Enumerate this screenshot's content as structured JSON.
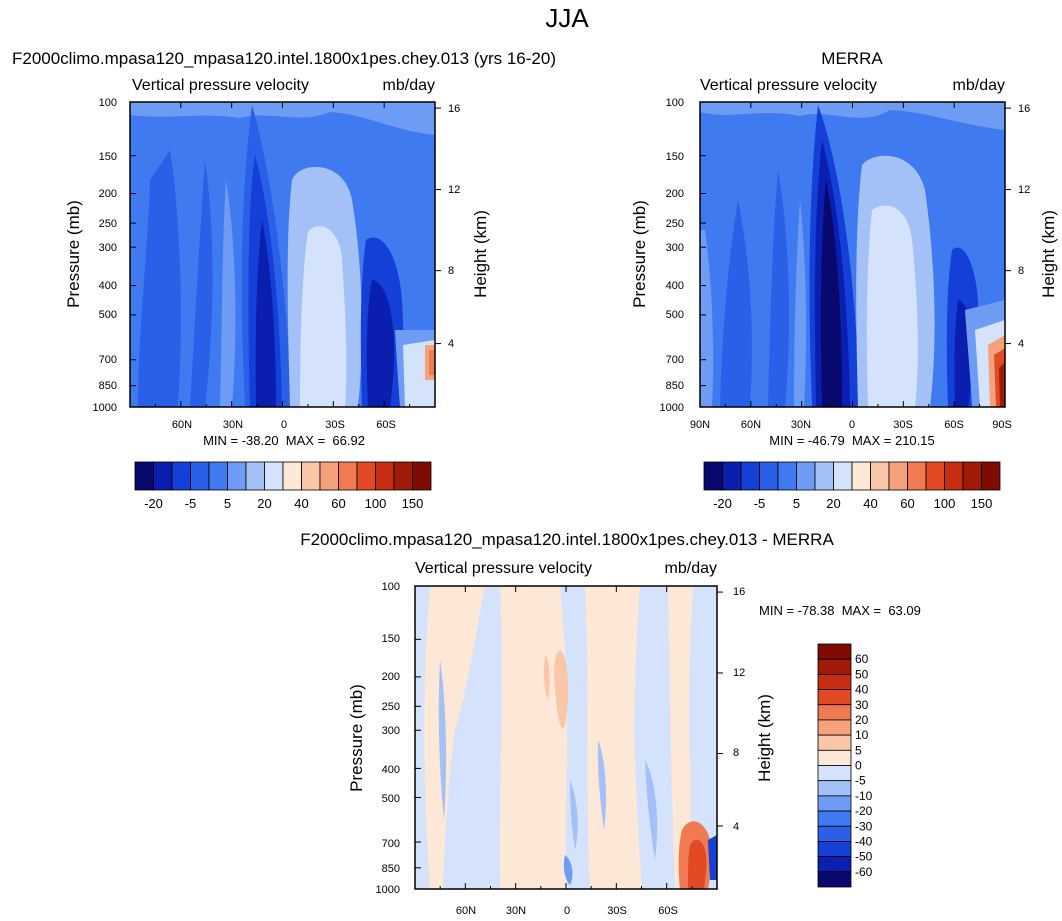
{
  "figure_title": "JJA",
  "chart_data": [
    {
      "type": "heatmap",
      "panel": "model",
      "title": "F2000climo.mpasa120_mpasa120.intel.1800x1pes.chey.013 (yrs 16-20)",
      "left_subtitle": "Vertical pressure velocity",
      "right_subtitle": "mb/day",
      "ylabel": "Pressure (mb)",
      "ylabel_right": "Height (km)",
      "pressure_ticks": [
        "100",
        "150",
        "200",
        "250",
        "300",
        "400",
        "500",
        "700",
        "850",
        "1000"
      ],
      "height_ticks": [
        "16",
        "12",
        "8",
        "4"
      ],
      "lat_ticks": [
        "60N",
        "30N",
        "0",
        "30S",
        "60S"
      ],
      "stats": "MIN = -38.20  MAX =  66.92",
      "min": -38.2,
      "max": 66.92
    },
    {
      "type": "heatmap",
      "panel": "obs",
      "title": "MERRA",
      "left_subtitle": "Vertical pressure velocity",
      "right_subtitle": "mb/day",
      "ylabel": "Pressure (mb)",
      "ylabel_right": "Height (km)",
      "pressure_ticks": [
        "100",
        "150",
        "200",
        "250",
        "300",
        "400",
        "500",
        "700",
        "850",
        "1000"
      ],
      "height_ticks": [
        "16",
        "12",
        "8",
        "4"
      ],
      "lat_ticks": [
        "90N",
        "60N",
        "30N",
        "0",
        "30S",
        "60S",
        "90S"
      ],
      "stats": "MIN = -46.79  MAX = 210.15",
      "min": -46.79,
      "max": 210.15
    },
    {
      "type": "heatmap",
      "panel": "diff",
      "title": "F2000climo.mpasa120_mpasa120.intel.1800x1pes.chey.013 - MERRA",
      "left_subtitle": "Vertical pressure velocity",
      "right_subtitle": "mb/day",
      "ylabel": "Pressure (mb)",
      "ylabel_right": "Height (km)",
      "pressure_ticks": [
        "100",
        "150",
        "200",
        "250",
        "300",
        "400",
        "500",
        "700",
        "850",
        "1000"
      ],
      "height_ticks": [
        "16",
        "12",
        "8",
        "4"
      ],
      "lat_ticks": [
        "60N",
        "30N",
        "0",
        "30S",
        "60S"
      ],
      "stats": "MIN = -78.38  MAX =  63.09",
      "min": -78.38,
      "max": 63.09
    }
  ],
  "colorbar_main": {
    "labels": [
      "-20",
      "-5",
      "5",
      "20",
      "40",
      "60",
      "100",
      "150"
    ],
    "colors": [
      "#08086e",
      "#0a1fb0",
      "#1440d8",
      "#2a60e8",
      "#3f7af0",
      "#6e9cf4",
      "#a3c1f7",
      "#d4e3fb",
      "#fde7d6",
      "#f9c6a8",
      "#f5a27c",
      "#f07a52",
      "#e24a26",
      "#c62d12",
      "#a21a08",
      "#7e0c02"
    ]
  },
  "colorbar_diff": {
    "labels": [
      "60",
      "50",
      "40",
      "30",
      "20",
      "10",
      "5",
      "0",
      "-5",
      "-10",
      "-20",
      "-30",
      "-40",
      "-50",
      "-60"
    ],
    "colors": [
      "#7e0c02",
      "#a21a08",
      "#c62d12",
      "#e24a26",
      "#f07a52",
      "#f5a27c",
      "#f9c6a8",
      "#fde7d6",
      "#d4e3fb",
      "#a3c1f7",
      "#6e9cf4",
      "#3f7af0",
      "#2a60e8",
      "#1440d8",
      "#0a1fb0",
      "#08086e"
    ]
  }
}
